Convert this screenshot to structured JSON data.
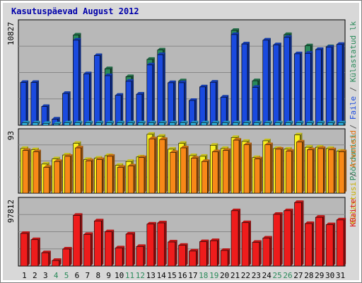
{
  "chart_data": {
    "type": "bar",
    "title": "Kasutuspäevad August 2012",
    "categories": [
      "1",
      "2",
      "3",
      "4",
      "5",
      "6",
      "7",
      "8",
      "9",
      "10",
      "11",
      "12",
      "13",
      "14",
      "15",
      "16",
      "17",
      "18",
      "19",
      "20",
      "21",
      "22",
      "23",
      "24",
      "25",
      "26",
      "27",
      "28",
      "29",
      "30",
      "31"
    ],
    "weekend_days": [
      "4",
      "5",
      "11",
      "12",
      "18",
      "19",
      "25",
      "26"
    ],
    "colors": {
      "title": "#0000aa",
      "weekend_label": "#2a8a5a",
      "weekday_label": "#000000",
      "plot_bg": "#b8b8b8",
      "grid": "#888888",
      "pageviews": "#2a8a5a",
      "files": "#1a4adf",
      "hits": "#30b8e8",
      "visits": "#f8f020",
      "visitors": "#f88818",
      "kbytes": "#ee1c1c"
    },
    "panels": [
      {
        "id": "top",
        "scale_label": "10827",
        "ylim": [
          0,
          10827
        ],
        "legend": [
          {
            "text": "Pöördumisi",
            "color": "#2a8a5a"
          },
          {
            "text": " / ",
            "color": "#555555"
          },
          {
            "text": "Faile",
            "color": "#1a4adf"
          },
          {
            "text": " / ",
            "color": "#555555"
          },
          {
            "text": "Külastatud lk",
            "color": "#2a8a5a"
          }
        ],
        "series": [
          {
            "name": "Pöördumisi",
            "color": "#2a8a5a",
            "values": [
              4580,
              4580,
              2000,
              650,
              3400,
              9650,
              5500,
              7450,
              6050,
              3200,
              5200,
              3320,
              7050,
              8050,
              4550,
              4750,
              2650,
              4100,
              4600,
              3000,
              10150,
              8700,
              4760,
              9100,
              8600,
              9700,
              7650,
              8500,
              8100,
              8400,
              0
            ]
          },
          {
            "name": "Faile",
            "color": "#1a4adf",
            "values": [
              4580,
              4580,
              2000,
              650,
              3400,
              9100,
              5500,
              7450,
              5300,
              3200,
              4700,
              3320,
              6450,
              7550,
              4550,
              4550,
              2650,
              4100,
              4600,
              3000,
              9700,
              8700,
              4050,
              9100,
              8600,
              9400,
              7650,
              7700,
              8100,
              8350,
              8650
            ]
          },
          {
            "name": "Külastatud lk",
            "color": "#30b8e8",
            "values": [
              250,
              250,
              200,
              150,
              250,
              250,
              250,
              250,
              250,
              250,
              250,
              250,
              250,
              250,
              250,
              250,
              250,
              250,
              250,
              250,
              250,
              250,
              250,
              250,
              250,
              250,
              250,
              250,
              250,
              250,
              250
            ]
          }
        ]
      },
      {
        "id": "middle",
        "scale_label": "93",
        "ylim": [
          0,
          93
        ],
        "legend": [
          {
            "text": "Külastusi",
            "color": "#c8b000"
          },
          {
            "text": " / ",
            "color": "#555555"
          },
          {
            "text": "Arvuteid",
            "color": "#e07010"
          }
        ],
        "series": [
          {
            "name": "Külastusi",
            "color": "#f8f020",
            "values": [
              69,
              67,
              45,
              53,
              59,
              77,
              52,
              54,
              58,
              43,
              49,
              56,
              91,
              88,
              68,
              77,
              58,
              57,
              74,
              69,
              86,
              80,
              55,
              81,
              69,
              68,
              90,
              71,
              71,
              69,
              65
            ]
          },
          {
            "name": "Arvuteid",
            "color": "#f88818",
            "values": [
              66,
              64,
              40,
              49,
              57,
              70,
              50,
              52,
              57,
              40,
              42,
              55,
              84,
              83,
              63,
              70,
              54,
              49,
              64,
              66,
              82,
              75,
              53,
              75,
              68,
              65,
              79,
              67,
              69,
              67,
              64
            ]
          }
        ]
      },
      {
        "id": "bottom",
        "scale_label": "97812",
        "ylim": [
          0,
          97812
        ],
        "legend": [
          {
            "text": "KBaite",
            "color": "#dd1c1c"
          }
        ],
        "series": [
          {
            "name": "KBaite",
            "color": "#ee1c1c",
            "values": [
              49500,
              40000,
              20200,
              8400,
              25800,
              77000,
              48000,
              68500,
              52000,
              27500,
              48500,
              29700,
              63700,
              65500,
              36500,
              31500,
              22700,
              37000,
              38500,
              23700,
              84000,
              65800,
              36000,
              42500,
              78500,
              84000,
              96500,
              64500,
              74000,
              62800,
              70000
            ]
          }
        ]
      }
    ]
  }
}
